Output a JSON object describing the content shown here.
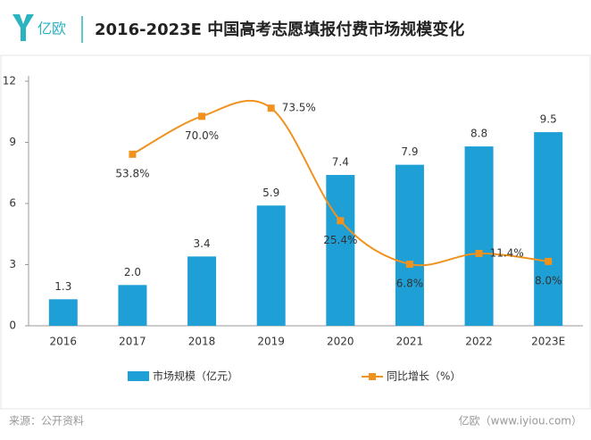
{
  "header": {
    "logo_text": "亿欧"
  },
  "chart_data": {
    "type": "bar",
    "title": "2016-2023E 中国高考志愿填报付费市场规模变化",
    "categories": [
      "2016",
      "2017",
      "2018",
      "2019",
      "2020",
      "2021",
      "2022",
      "2023E"
    ],
    "series": [
      {
        "name": "市场规模（亿元）",
        "type": "bar",
        "color": "#1e9fd6",
        "axis": "y",
        "values": [
          1.3,
          2.0,
          3.4,
          5.9,
          7.4,
          7.9,
          8.8,
          9.5
        ],
        "value_labels": [
          "1.3",
          "2.0",
          "3.4",
          "5.9",
          "7.4",
          "7.9",
          "8.8",
          "9.5"
        ]
      },
      {
        "name": "同比增长（%）",
        "type": "line",
        "color": "#f0921e",
        "axis": "y2",
        "values": [
          null,
          53.8,
          70.0,
          73.5,
          25.4,
          6.8,
          11.4,
          8.0
        ],
        "value_labels": [
          null,
          "53.8%",
          "70.0%",
          "73.5%",
          "25.4%",
          "6.8%",
          "11.4%",
          "8.0%"
        ]
      }
    ],
    "ylim": [
      0,
      12
    ],
    "yticks": [
      0,
      3,
      6,
      9,
      12
    ],
    "y2lim": [
      -19.5,
      85
    ],
    "smooth": true
  },
  "footer": {
    "source": "来源：公开资料",
    "credit": "亿欧（www.iyiou.com）"
  }
}
